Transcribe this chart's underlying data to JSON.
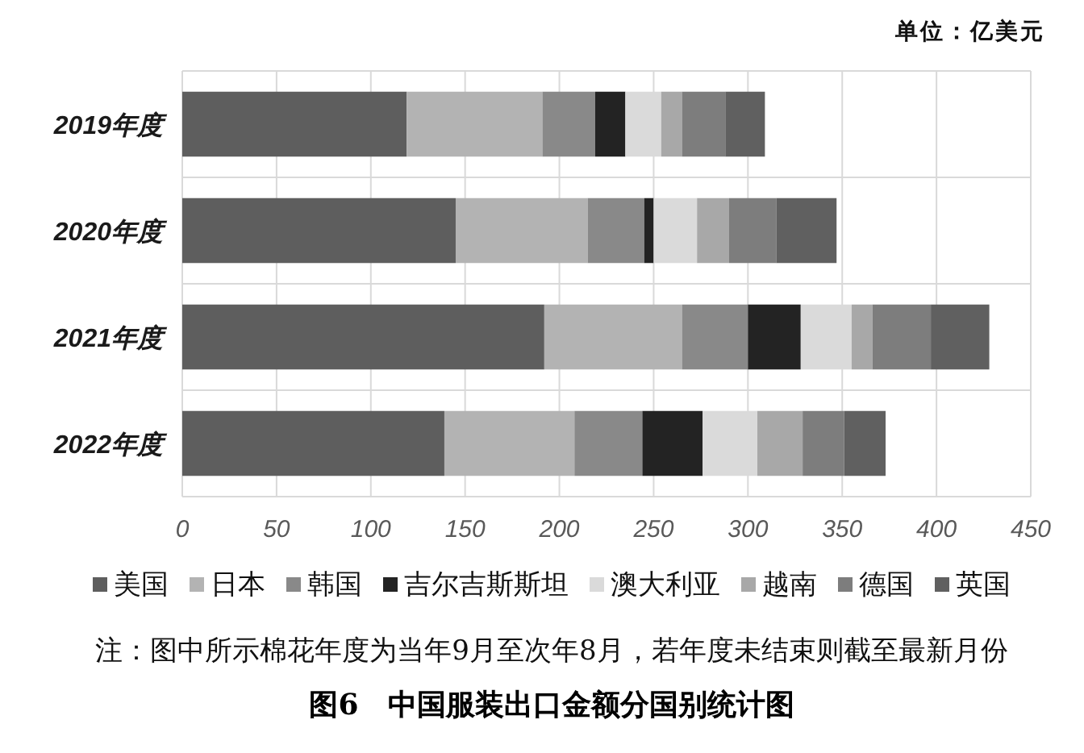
{
  "chart_data": {
    "type": "bar",
    "orientation": "horizontal",
    "stacked": true,
    "title": "图6　中国服装出口金额分国别统计图",
    "xlabel": "单位：亿美元",
    "annotations": [
      "注：图中所示棉花年度为当年9月至次年8月，若年度未结束则截至最新月份"
    ],
    "categories": [
      "2019年度",
      "2020年度",
      "2021年度",
      "2022年度"
    ],
    "series": [
      {
        "name": "美国",
        "color": "#5e5e5e",
        "values": [
          119,
          145,
          192,
          139
        ]
      },
      {
        "name": "日本",
        "color": "#b3b3b3",
        "values": [
          72,
          70,
          73,
          69
        ]
      },
      {
        "name": "韩国",
        "color": "#898989",
        "values": [
          28,
          30,
          35,
          36
        ]
      },
      {
        "name": "吉尔吉斯斯坦",
        "color": "#232323",
        "values": [
          16,
          5,
          28,
          32
        ]
      },
      {
        "name": "澳大利亚",
        "color": "#dadada",
        "values": [
          19,
          23,
          27,
          29
        ]
      },
      {
        "name": "越南",
        "color": "#a8a8a8",
        "values": [
          11,
          17,
          11,
          24
        ]
      },
      {
        "name": "德国",
        "color": "#7d7d7d",
        "values": [
          23,
          25,
          31,
          22
        ]
      },
      {
        "name": "英国",
        "color": "#606060",
        "values": [
          21,
          32,
          31,
          22
        ]
      }
    ],
    "xlim": [
      0,
      450
    ],
    "xticks": [
      0,
      50,
      100,
      150,
      200,
      250,
      300,
      350,
      400,
      450
    ],
    "grid": true,
    "legend": "bottom"
  }
}
